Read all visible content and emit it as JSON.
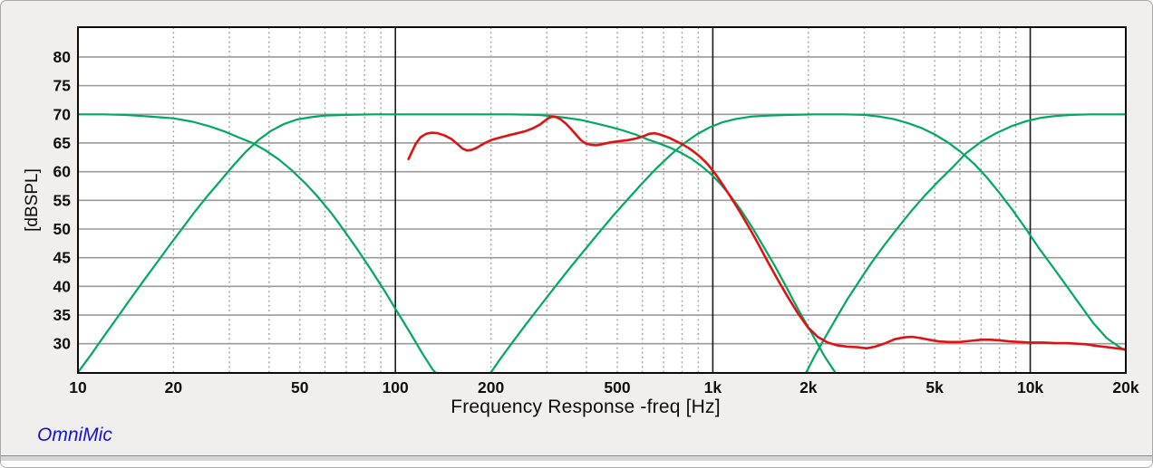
{
  "footer": {
    "brand": "OmniMic",
    "brand_color": "#1414d6"
  },
  "chart_data": {
    "type": "line",
    "title": "",
    "xlabel": "Frequency Response -freq [Hz]",
    "ylabel": "[dBSPL]",
    "x_scale": "log",
    "x_range": [
      10,
      20000
    ],
    "y_range": [
      24.9,
      85.2
    ],
    "grid": true,
    "legend": "none",
    "y_ticks": [
      30,
      35,
      40,
      45,
      50,
      55,
      60,
      65,
      70,
      75,
      80
    ],
    "x_ticks": [
      {
        "f": 10,
        "label": "10"
      },
      {
        "f": 20,
        "label": "20"
      },
      {
        "f": 50,
        "label": "50"
      },
      {
        "f": 100,
        "label": "100"
      },
      {
        "f": 200,
        "label": "200"
      },
      {
        "f": 500,
        "label": "500"
      },
      {
        "f": 1000,
        "label": "1k"
      },
      {
        "f": 2000,
        "label": "2k"
      },
      {
        "f": 5000,
        "label": "5k"
      },
      {
        "f": 10000,
        "label": "10k"
      },
      {
        "f": 20000,
        "label": "20k"
      }
    ],
    "minor_gridlines": [
      20,
      30,
      40,
      50,
      60,
      70,
      80,
      90,
      200,
      300,
      400,
      500,
      600,
      700,
      800,
      900,
      2000,
      3000,
      4000,
      5000,
      6000,
      7000,
      8000,
      9000
    ],
    "decade_marker_lines": [
      100,
      1000,
      10000
    ],
    "colors": {
      "filter_band": "#00a860",
      "measured": "#de1212",
      "grid": "#9a9a9a",
      "marker": "#1c1c1c",
      "plot_border": "#0a0a0a",
      "plot_background": "#ffffff"
    },
    "series": [
      {
        "name": "low-band-filter",
        "color": "#00a860",
        "points": [
          [
            10,
            70
          ],
          [
            12,
            70
          ],
          [
            14,
            69.9
          ],
          [
            16,
            69.7
          ],
          [
            18,
            69.5
          ],
          [
            20,
            69.3
          ],
          [
            23,
            68.7
          ],
          [
            26,
            67.9
          ],
          [
            29,
            67
          ],
          [
            32,
            66
          ],
          [
            35.5,
            65
          ],
          [
            39,
            63.7
          ],
          [
            43,
            62.1
          ],
          [
            47,
            60.3
          ],
          [
            52,
            58
          ],
          [
            57,
            55.6
          ],
          [
            63,
            52.7
          ],
          [
            69,
            49.7
          ],
          [
            76,
            46.4
          ],
          [
            84,
            42.8
          ],
          [
            92,
            39.4
          ],
          [
            101,
            35.7
          ],
          [
            111,
            32
          ],
          [
            121,
            28.5
          ],
          [
            131,
            25.5
          ],
          [
            134,
            24.9
          ]
        ]
      },
      {
        "name": "low-mid-band-filter",
        "color": "#00a860",
        "points": [
          [
            10,
            25
          ],
          [
            11,
            28.1
          ],
          [
            12,
            31.1
          ],
          [
            13.2,
            34.3
          ],
          [
            14.5,
            37.5
          ],
          [
            16,
            40.8
          ],
          [
            17.6,
            43.9
          ],
          [
            19.4,
            47.1
          ],
          [
            21.3,
            50.1
          ],
          [
            23.4,
            53.1
          ],
          [
            25.7,
            55.9
          ],
          [
            28.2,
            58.5
          ],
          [
            31,
            61.2
          ],
          [
            34,
            63.6
          ],
          [
            37,
            65.5
          ],
          [
            40.5,
            67.1
          ],
          [
            44.5,
            68.3
          ],
          [
            49,
            69.1
          ],
          [
            54,
            69.5
          ],
          [
            60,
            69.8
          ],
          [
            70,
            69.9
          ],
          [
            85,
            70
          ],
          [
            150,
            70
          ],
          [
            230,
            70
          ],
          [
            280,
            69.9
          ],
          [
            310,
            69.7
          ],
          [
            345,
            69.4
          ],
          [
            385,
            69
          ],
          [
            430,
            68.4
          ],
          [
            475,
            67.8
          ],
          [
            520,
            67.2
          ],
          [
            570,
            66.5
          ],
          [
            625,
            65.6
          ],
          [
            680,
            64.9
          ],
          [
            740,
            64.1
          ],
          [
            800,
            63.2
          ],
          [
            860,
            62.2
          ],
          [
            920,
            61
          ],
          [
            990,
            59.5
          ],
          [
            1060,
            57.8
          ],
          [
            1140,
            55.7
          ],
          [
            1230,
            53.2
          ],
          [
            1330,
            50.3
          ],
          [
            1440,
            47.1
          ],
          [
            1560,
            43.8
          ],
          [
            1700,
            40
          ],
          [
            1860,
            35.9
          ],
          [
            2040,
            32
          ],
          [
            2260,
            27.6
          ],
          [
            2430,
            25
          ]
        ]
      },
      {
        "name": "high-mid-band-filter",
        "color": "#00a860",
        "points": [
          [
            200,
            25
          ],
          [
            215,
            27.5
          ],
          [
            235,
            30.4
          ],
          [
            258,
            33.4
          ],
          [
            285,
            36.5
          ],
          [
            315,
            39.6
          ],
          [
            350,
            42.8
          ],
          [
            390,
            46
          ],
          [
            435,
            49.2
          ],
          [
            485,
            52.3
          ],
          [
            540,
            55.2
          ],
          [
            600,
            58
          ],
          [
            665,
            60.6
          ],
          [
            735,
            62.9
          ],
          [
            810,
            64.9
          ],
          [
            890,
            66.5
          ],
          [
            975,
            67.7
          ],
          [
            1070,
            68.6
          ],
          [
            1180,
            69.2
          ],
          [
            1320,
            69.6
          ],
          [
            1500,
            69.8
          ],
          [
            1750,
            69.9
          ],
          [
            2100,
            70
          ],
          [
            2600,
            70
          ],
          [
            3000,
            69.9
          ],
          [
            3350,
            69.6
          ],
          [
            3700,
            69.2
          ],
          [
            4100,
            68.5
          ],
          [
            4550,
            67.6
          ],
          [
            5000,
            66.5
          ],
          [
            5500,
            65.1
          ],
          [
            6050,
            63.4
          ],
          [
            6650,
            61.4
          ],
          [
            7300,
            59
          ],
          [
            8000,
            56.3
          ],
          [
            8800,
            53.3
          ],
          [
            9700,
            50
          ],
          [
            10700,
            46.5
          ],
          [
            11800,
            43.3
          ],
          [
            13000,
            40.1
          ],
          [
            14300,
            36.9
          ],
          [
            15800,
            33.6
          ],
          [
            17400,
            31
          ],
          [
            19000,
            29.5
          ],
          [
            20000,
            28.8
          ]
        ]
      },
      {
        "name": "high-band-filter",
        "color": "#00a860",
        "points": [
          [
            1970,
            25
          ],
          [
            2100,
            28
          ],
          [
            2275,
            31.4
          ],
          [
            2450,
            34.5
          ],
          [
            2650,
            37.7
          ],
          [
            2900,
            41
          ],
          [
            3150,
            44
          ],
          [
            3450,
            47
          ],
          [
            3800,
            50
          ],
          [
            4200,
            53
          ],
          [
            4650,
            55.8
          ],
          [
            5150,
            58.4
          ],
          [
            5700,
            60.8
          ],
          [
            6300,
            63.3
          ],
          [
            7000,
            65.2
          ],
          [
            7800,
            66.7
          ],
          [
            8700,
            67.9
          ],
          [
            9700,
            68.8
          ],
          [
            10800,
            69.4
          ],
          [
            12000,
            69.7
          ],
          [
            13500,
            69.9
          ],
          [
            15500,
            70
          ],
          [
            20000,
            70
          ]
        ]
      },
      {
        "name": "measured-response",
        "color": "#de1212",
        "points": [
          [
            110,
            62.2
          ],
          [
            113,
            63.6
          ],
          [
            116,
            64.9
          ],
          [
            120,
            66
          ],
          [
            125,
            66.6
          ],
          [
            130,
            66.8
          ],
          [
            136,
            66.7
          ],
          [
            143,
            66.3
          ],
          [
            150,
            65.7
          ],
          [
            157,
            64.8
          ],
          [
            163,
            64
          ],
          [
            168,
            63.7
          ],
          [
            174,
            63.8
          ],
          [
            181,
            64.2
          ],
          [
            190,
            64.9
          ],
          [
            200,
            65.5
          ],
          [
            212,
            65.9
          ],
          [
            226,
            66.3
          ],
          [
            242,
            66.7
          ],
          [
            258,
            67.1
          ],
          [
            272,
            67.6
          ],
          [
            285,
            68.2
          ],
          [
            296,
            68.9
          ],
          [
            305,
            69.4
          ],
          [
            313,
            69.6
          ],
          [
            322,
            69.5
          ],
          [
            332,
            69.1
          ],
          [
            344,
            68.4
          ],
          [
            357,
            67.5
          ],
          [
            370,
            66.5
          ],
          [
            384,
            65.5
          ],
          [
            398,
            64.9
          ],
          [
            413,
            64.7
          ],
          [
            430,
            64.6
          ],
          [
            450,
            64.8
          ],
          [
            475,
            65.1
          ],
          [
            505,
            65.3
          ],
          [
            540,
            65.5
          ],
          [
            575,
            65.8
          ],
          [
            605,
            66.2
          ],
          [
            630,
            66.6
          ],
          [
            655,
            66.7
          ],
          [
            680,
            66.5
          ],
          [
            705,
            66.2
          ],
          [
            730,
            65.9
          ],
          [
            760,
            65.4
          ],
          [
            800,
            64.8
          ],
          [
            840,
            64.1
          ],
          [
            880,
            63.3
          ],
          [
            920,
            62.4
          ],
          [
            960,
            61.4
          ],
          [
            1000,
            60.2
          ],
          [
            1040,
            58.9
          ],
          [
            1090,
            57.2
          ],
          [
            1150,
            55.2
          ],
          [
            1220,
            52.9
          ],
          [
            1300,
            50.3
          ],
          [
            1390,
            47.4
          ],
          [
            1490,
            44.3
          ],
          [
            1600,
            41.2
          ],
          [
            1720,
            38.2
          ],
          [
            1850,
            35.4
          ],
          [
            1990,
            32.9
          ],
          [
            2140,
            31.2
          ],
          [
            2300,
            30.2
          ],
          [
            2470,
            29.7
          ],
          [
            2650,
            29.5
          ],
          [
            2850,
            29.4
          ],
          [
            3050,
            29.2
          ],
          [
            3250,
            29.5
          ],
          [
            3500,
            30.1
          ],
          [
            3750,
            30.8
          ],
          [
            4000,
            31.1
          ],
          [
            4250,
            31.2
          ],
          [
            4500,
            31
          ],
          [
            4800,
            30.7
          ],
          [
            5150,
            30.4
          ],
          [
            5550,
            30.3
          ],
          [
            6000,
            30.3
          ],
          [
            6500,
            30.5
          ],
          [
            7000,
            30.7
          ],
          [
            7500,
            30.7
          ],
          [
            8000,
            30.6
          ],
          [
            8600,
            30.4
          ],
          [
            9300,
            30.3
          ],
          [
            10000,
            30.2
          ],
          [
            11000,
            30.2
          ],
          [
            12000,
            30.1
          ],
          [
            13000,
            30.1
          ],
          [
            14000,
            30
          ],
          [
            15000,
            29.9
          ],
          [
            16200,
            29.6
          ],
          [
            17500,
            29.4
          ],
          [
            18700,
            29.2
          ],
          [
            20000,
            29
          ]
        ]
      }
    ]
  }
}
